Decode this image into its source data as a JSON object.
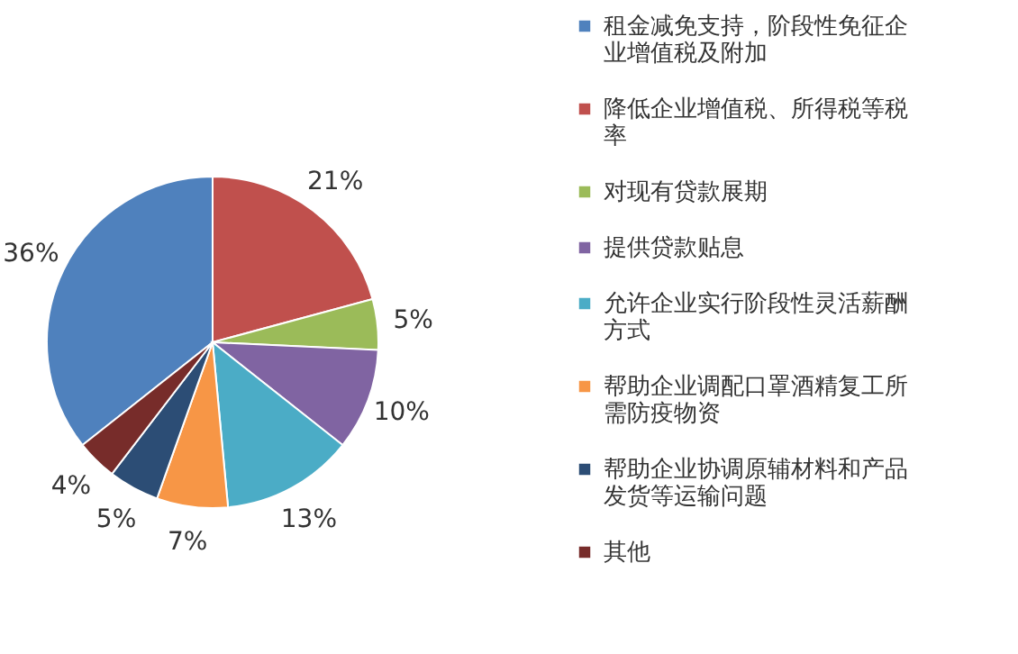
{
  "chart_data": {
    "type": "pie",
    "categories": [
      "租金减免支持，阶段性免征企业增值税及附加",
      "降低企业增值税、所得税等税率",
      "对现有贷款展期",
      "提供贷款贴息",
      "允许企业实行阶段性灵活薪酬方式",
      "帮助企业调配口罩酒精复工所需防疫物资",
      "帮助企业协调原辅材料和产品发货等运输问题",
      "其他"
    ],
    "values": [
      36,
      21,
      5,
      10,
      13,
      7,
      5,
      4
    ],
    "value_labels": [
      "36%",
      "21%",
      "5%",
      "10%",
      "13%",
      "7%",
      "5%",
      "4%"
    ],
    "colors": [
      "#4f81bd",
      "#c0504d",
      "#9bbb59",
      "#8064a2",
      "#4bacc6",
      "#f79646",
      "#2c4d75",
      "#772c2a"
    ],
    "legend": "right"
  }
}
